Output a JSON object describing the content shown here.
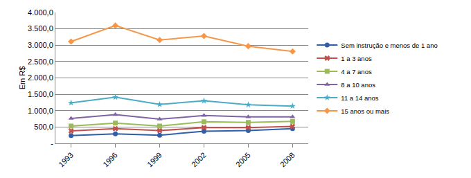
{
  "chart_data": {
    "type": "line",
    "y_label": "Em R$",
    "categories": [
      "1993",
      "1996",
      "1999",
      "2002",
      "2005",
      "2008"
    ],
    "series": [
      {
        "name": "Sem instrução e menos de 1 ano",
        "color": "#2E5FA8",
        "marker": "circle",
        "values": [
          240,
          290,
          250,
          370,
          390,
          450
        ]
      },
      {
        "name": "1 a 3 anos",
        "color": "#C0504D",
        "marker": "x",
        "values": [
          380,
          450,
          390,
          480,
          480,
          520
        ]
      },
      {
        "name": "4 a 7 anos",
        "color": "#9BBB59",
        "marker": "square",
        "values": [
          530,
          620,
          530,
          660,
          640,
          670
        ]
      },
      {
        "name": "8 a 10 anos",
        "color": "#8064A2",
        "marker": "triangle-up",
        "values": [
          760,
          880,
          740,
          850,
          810,
          810
        ]
      },
      {
        "name": "11 a 14 anos",
        "color": "#4BACC6",
        "marker": "star",
        "values": [
          1240,
          1410,
          1190,
          1300,
          1180,
          1140
        ]
      },
      {
        "name": "15 anos ou mais",
        "color": "#F79646",
        "marker": "diamond",
        "values": [
          3110,
          3600,
          3160,
          3280,
          2970,
          2810
        ]
      }
    ],
    "ylim": [
      0,
      4000
    ],
    "yticks": [
      {
        "value": 0,
        "label": "-"
      },
      {
        "value": 500,
        "label": "500,0"
      },
      {
        "value": 1000,
        "label": "1.000,0"
      },
      {
        "value": 1500,
        "label": "1.500,0"
      },
      {
        "value": 2000,
        "label": "2.000,0"
      },
      {
        "value": 2500,
        "label": "2.500,0"
      },
      {
        "value": 3000,
        "label": "3.000,0"
      },
      {
        "value": 3500,
        "label": "3.500,0"
      },
      {
        "value": 4000,
        "label": "4.000,0"
      }
    ],
    "grid": true,
    "legend": "right"
  }
}
